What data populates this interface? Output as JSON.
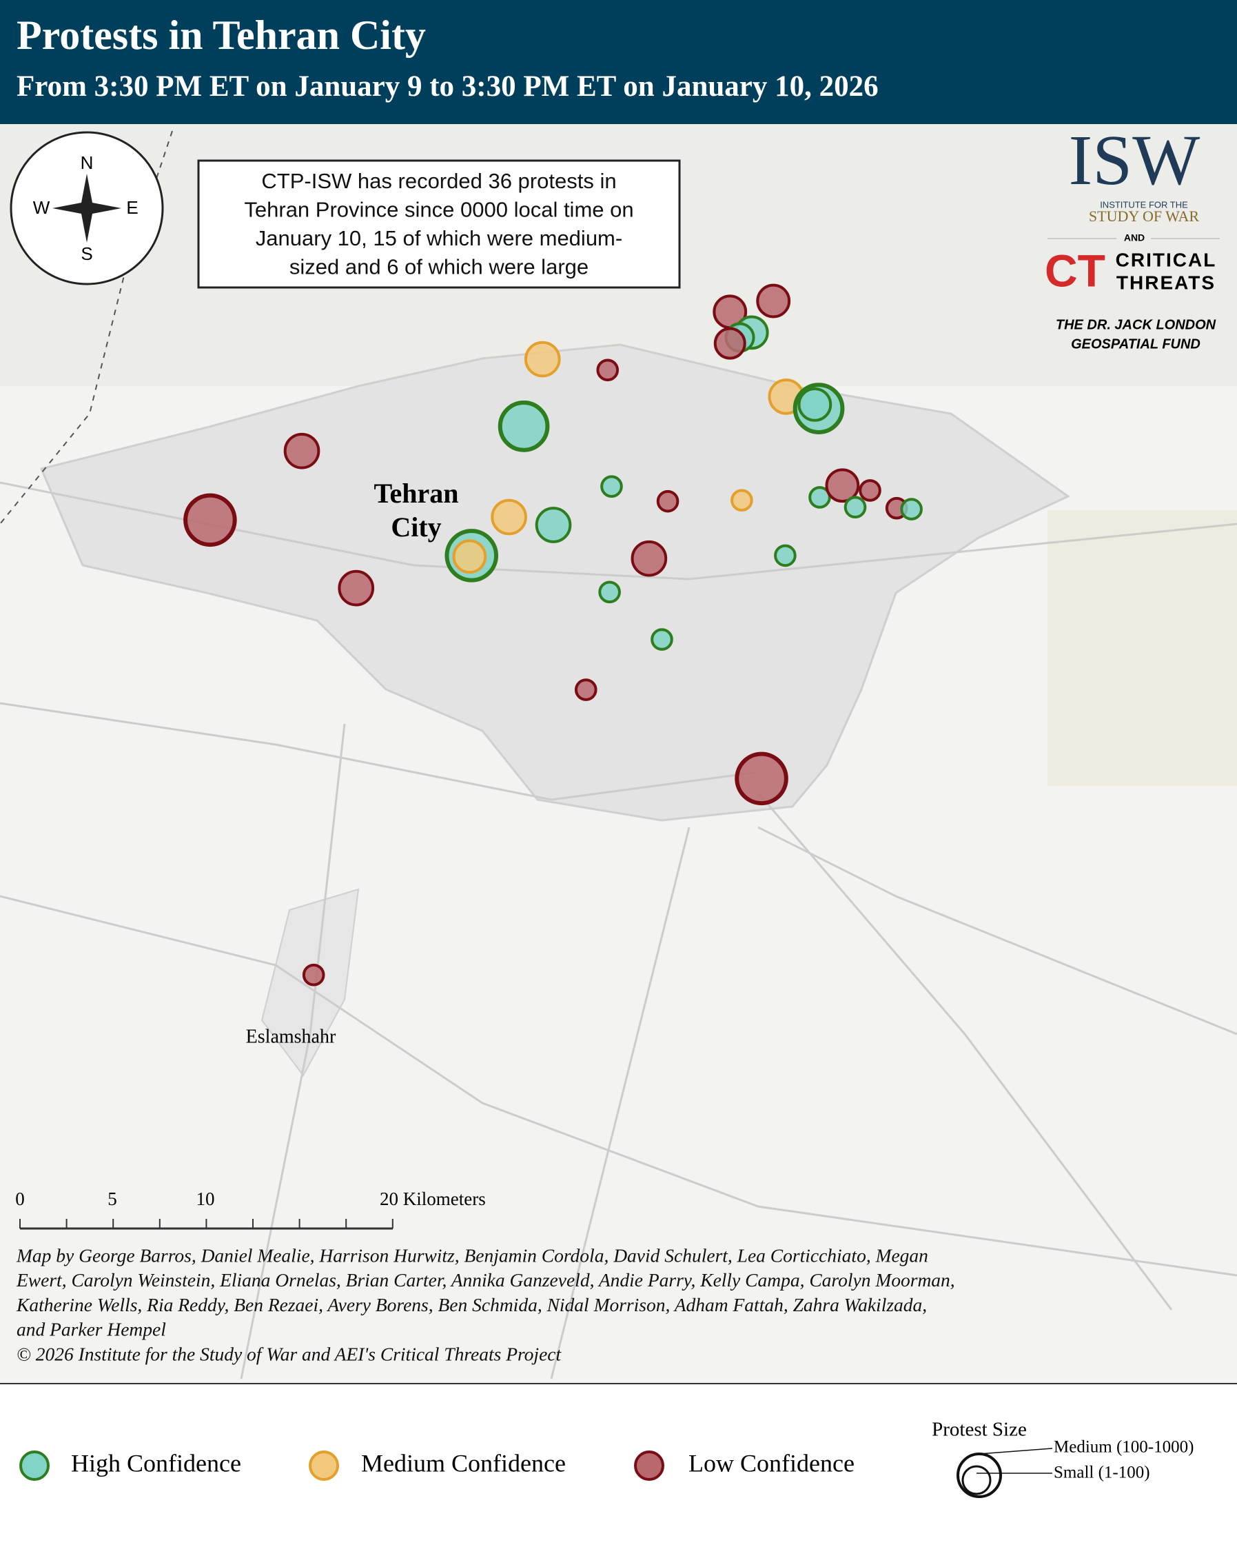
{
  "header": {
    "title": "Protests in Tehran City",
    "subtitle": "From 3:30 PM ET on January 9 to 3:30 PM ET on January 10, 2026"
  },
  "compass": {
    "n": "N",
    "s": "S",
    "e": "E",
    "w": "W"
  },
  "info_box": [
    "CTP-ISW has recorded 36 protests in",
    "Tehran Province since 0000 local time on",
    "January 10, 15 of which were medium-",
    "sized and 6 of which were large"
  ],
  "logos": {
    "isw": "ISW",
    "isw_sub": [
      "INSTITUTE FOR THE",
      "STUDY OF WAR"
    ],
    "and": "AND",
    "ct": "CT",
    "ct_name": [
      "CRITICAL",
      "THREATS"
    ],
    "fund": [
      "THE DR. JACK LONDON",
      "GEOSPATIAL FUND"
    ]
  },
  "map_labels": {
    "tehran": [
      "Tehran",
      "City"
    ],
    "eslamshahr": "Eslamshahr"
  },
  "scale_bar": {
    "labels": [
      "0",
      "5",
      "10",
      "20 Kilometers"
    ]
  },
  "credits": [
    "Map by George Barros, Daniel Mealie, Harrison Hurwitz, Benjamin Cordola, David Schulert, Lea Corticchiato, Megan",
    "Ewert, Carolyn Weinstein, Eliana Ornelas, Brian Carter, Annika Ganzeveld, Andie Parry, Kelly Campa, Carolyn Moorman,",
    "Katherine Wells, Ria Reddy, Ben Rezaei, Avery Borens, Ben Schmida, Nidal Morrison, Adham Fattah, Zahra Wakilzada,",
    "and Parker Hempel",
    "© 2026 Institute for the Study of War and AEI's Critical Threats Project"
  ],
  "legend": {
    "items": [
      "High Confidence",
      "Medium Confidence",
      "Low Confidence"
    ],
    "size_title": "Protest Size",
    "medium": "Medium (100-1000)",
    "small": "Small (1-100)"
  }
}
